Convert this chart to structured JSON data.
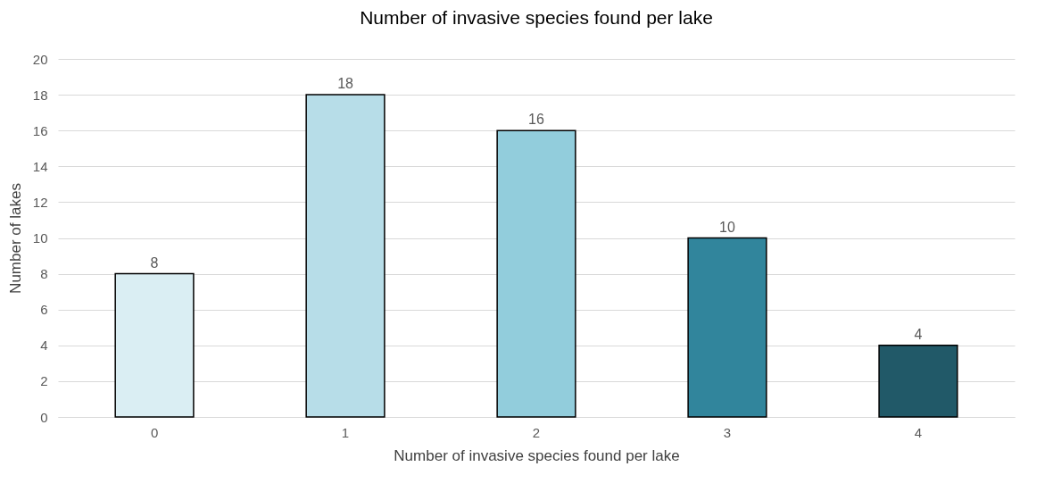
{
  "chart_data": {
    "type": "bar",
    "title": "Number of invasive species found per lake",
    "xlabel": "Number of invasive species found per lake",
    "ylabel": "Number of lakes",
    "categories": [
      "0",
      "1",
      "2",
      "3",
      "4"
    ],
    "values": [
      8,
      18,
      16,
      10,
      4
    ],
    "colors": [
      "#daeef3",
      "#b7dde8",
      "#92cddc",
      "#31859c",
      "#215968"
    ],
    "ylim": [
      0,
      20
    ],
    "yticks": [
      0,
      2,
      4,
      6,
      8,
      10,
      12,
      14,
      16,
      18,
      20
    ],
    "grid": "y",
    "data_labels": true
  }
}
